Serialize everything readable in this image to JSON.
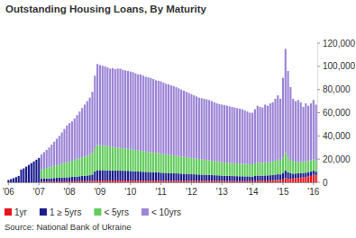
{
  "chart_data": {
    "type": "bar",
    "title": "Outstanding Housing Loans, By Maturity",
    "source": "Source: National Bank of Ukraine",
    "stacked": true,
    "grid": false,
    "legend": "bottom",
    "ylim": [
      0,
      120000
    ],
    "yticks": [
      0,
      {
        "value": 20000,
        "label": "20,000"
      },
      {
        "value": 40000,
        "label": "40,000"
      },
      {
        "value": 60000,
        "label": "60,000"
      },
      {
        "value": 80000,
        "label": "80,000"
      },
      {
        "value": 100000,
        "label": "100,000"
      },
      {
        "value": 120000,
        "label": "120,000"
      }
    ],
    "categories": [
      "'06",
      null,
      null,
      null,
      null,
      null,
      null,
      null,
      null,
      null,
      null,
      null,
      "'07",
      null,
      null,
      null,
      null,
      null,
      null,
      null,
      null,
      null,
      null,
      null,
      "'08",
      null,
      null,
      null,
      null,
      null,
      null,
      null,
      null,
      null,
      null,
      null,
      "'09",
      null,
      null,
      null,
      null,
      null,
      null,
      null,
      null,
      null,
      null,
      null,
      "'10",
      null,
      null,
      null,
      null,
      null,
      null,
      null,
      null,
      null,
      null,
      null,
      "'11",
      null,
      null,
      null,
      null,
      null,
      null,
      null,
      null,
      null,
      null,
      null,
      "'12",
      null,
      null,
      null,
      null,
      null,
      null,
      null,
      null,
      null,
      null,
      null,
      "'13",
      null,
      null,
      null,
      null,
      null,
      null,
      null,
      null,
      null,
      null,
      null,
      "'14",
      null,
      null,
      null,
      null,
      null,
      null,
      null,
      null,
      null,
      null,
      null,
      "'15",
      null,
      null,
      null,
      null,
      null,
      null,
      null,
      null,
      null,
      null,
      null,
      "'16",
      null
    ],
    "series": [
      {
        "name": "1yr",
        "color": "#e8141c",
        "values": [
          0,
          0,
          0,
          0,
          0,
          0,
          0,
          0,
          0,
          0,
          0,
          0,
          0,
          500,
          500,
          600,
          600,
          600,
          700,
          700,
          700,
          800,
          800,
          800,
          800,
          900,
          900,
          900,
          1000,
          1000,
          1000,
          1100,
          1100,
          1200,
          1400,
          1500,
          1500,
          1500,
          1500,
          1500,
          1500,
          1500,
          1500,
          1500,
          1500,
          1500,
          1500,
          1500,
          1500,
          1500,
          1400,
          1400,
          1400,
          1400,
          1400,
          1400,
          1400,
          1400,
          1400,
          1400,
          1300,
          1300,
          1300,
          1300,
          1300,
          1300,
          1300,
          1300,
          1300,
          1300,
          1300,
          1300,
          1200,
          1200,
          1200,
          1200,
          1200,
          1200,
          1200,
          1200,
          1200,
          1200,
          1200,
          1200,
          1100,
          1100,
          1100,
          1100,
          1000,
          1000,
          1000,
          1000,
          1000,
          1000,
          1000,
          1000,
          1000,
          1200,
          1400,
          1400,
          1400,
          1500,
          1500,
          1600,
          1700,
          1800,
          2000,
          2000,
          2500,
          3500,
          3000,
          3000,
          3200,
          3500,
          3800,
          4000,
          4200,
          4500,
          5000,
          5500,
          6500,
          6000
        ]
      },
      {
        "name": "1 ≥ 5yrs",
        "color": "#1c1c8e",
        "values": [
          2000,
          2800,
          3600,
          4500,
          5500,
          11000,
          12000,
          13500,
          15000,
          16500,
          18000,
          19500,
          21000,
          2500,
          2600,
          2700,
          2800,
          2900,
          3000,
          3100,
          3200,
          3300,
          3400,
          3500,
          3600,
          3700,
          3800,
          4000,
          4200,
          4400,
          4600,
          4800,
          5000,
          5500,
          8000,
          9000,
          9000,
          9000,
          8800,
          8800,
          8700,
          8700,
          8600,
          8600,
          8500,
          8500,
          8400,
          8400,
          8200,
          8100,
          8000,
          7900,
          7800,
          7700,
          7600,
          7500,
          7400,
          7300,
          7200,
          7100,
          7000,
          6900,
          6800,
          6700,
          6600,
          6500,
          6400,
          6300,
          6200,
          6100,
          6000,
          5900,
          5800,
          5700,
          5600,
          5500,
          5400,
          5300,
          5200,
          5100,
          5000,
          4900,
          4800,
          4700,
          4600,
          4500,
          4500,
          4400,
          4400,
          4300,
          4300,
          4200,
          4200,
          4100,
          4100,
          4000,
          4000,
          4200,
          4400,
          4300,
          4300,
          4400,
          4400,
          4500,
          4600,
          4800,
          5000,
          4800,
          5500,
          6500,
          5500,
          4800,
          4200,
          4000,
          4000,
          3900,
          3800,
          3800,
          3700,
          3700,
          3500,
          3200
        ]
      },
      {
        "name": "< 5yrs",
        "color": "#62cc5c",
        "values": [
          0,
          0,
          0,
          0,
          0,
          0,
          0,
          0,
          0,
          0,
          0,
          0,
          0,
          8000,
          8500,
          9000,
          9500,
          10000,
          10500,
          11000,
          11500,
          12000,
          12500,
          13000,
          13500,
          14000,
          14500,
          15000,
          15500,
          16000,
          16500,
          17000,
          17500,
          18500,
          20000,
          21500,
          21500,
          21300,
          21000,
          20800,
          20500,
          20300,
          20000,
          19800,
          19600,
          19400,
          19200,
          19000,
          18800,
          18600,
          18400,
          18200,
          18000,
          17800,
          17600,
          17400,
          17200,
          17000,
          16800,
          16600,
          16400,
          16200,
          16000,
          15800,
          15600,
          15400,
          15200,
          15000,
          14800,
          14600,
          14400,
          14200,
          14000,
          13800,
          13600,
          13400,
          13200,
          13000,
          12800,
          12600,
          12400,
          12200,
          12000,
          11800,
          11600,
          11500,
          11400,
          11300,
          11200,
          11100,
          11000,
          10900,
          10800,
          10700,
          10600,
          10500,
          10500,
          11000,
          11500,
          11200,
          11000,
          11300,
          11200,
          11400,
          11600,
          12000,
          12500,
          12000,
          13500,
          16000,
          13000,
          11500,
          10500,
          10000,
          10000,
          9800,
          9500,
          9800,
          9600,
          9800,
          10000,
          9500
        ]
      },
      {
        "name": "< 10yrs",
        "color": "#9c84d6",
        "values": [
          0,
          0,
          0,
          0,
          0,
          0,
          0,
          0,
          0,
          0,
          0,
          0,
          0,
          13000,
          14400,
          15700,
          17100,
          19000,
          20800,
          22700,
          24600,
          26900,
          29300,
          31700,
          33100,
          33900,
          35800,
          38100,
          40300,
          42600,
          44900,
          47100,
          49400,
          52800,
          62600,
          70000,
          69000,
          68700,
          68700,
          67900,
          67300,
          68000,
          67400,
          68100,
          68400,
          67600,
          67400,
          67100,
          67000,
          66800,
          66200,
          65500,
          65800,
          65100,
          64400,
          64200,
          64000,
          63300,
          62600,
          62400,
          62300,
          61600,
          60900,
          60700,
          60000,
          59800,
          59100,
          58400,
          57700,
          57000,
          56300,
          55600,
          55000,
          54300,
          53600,
          52900,
          52700,
          52500,
          52300,
          52100,
          51400,
          50700,
          50000,
          49800,
          49700,
          49400,
          49000,
          48700,
          48400,
          48100,
          47700,
          47400,
          47000,
          46200,
          45300,
          44500,
          44500,
          46600,
          48700,
          48100,
          47800,
          49800,
          48900,
          50500,
          51100,
          53400,
          55500,
          53200,
          68500,
          89000,
          74500,
          62700,
          54100,
          52500,
          53200,
          51300,
          47500,
          49900,
          47700,
          49000,
          51000,
          48300
        ]
      }
    ]
  }
}
